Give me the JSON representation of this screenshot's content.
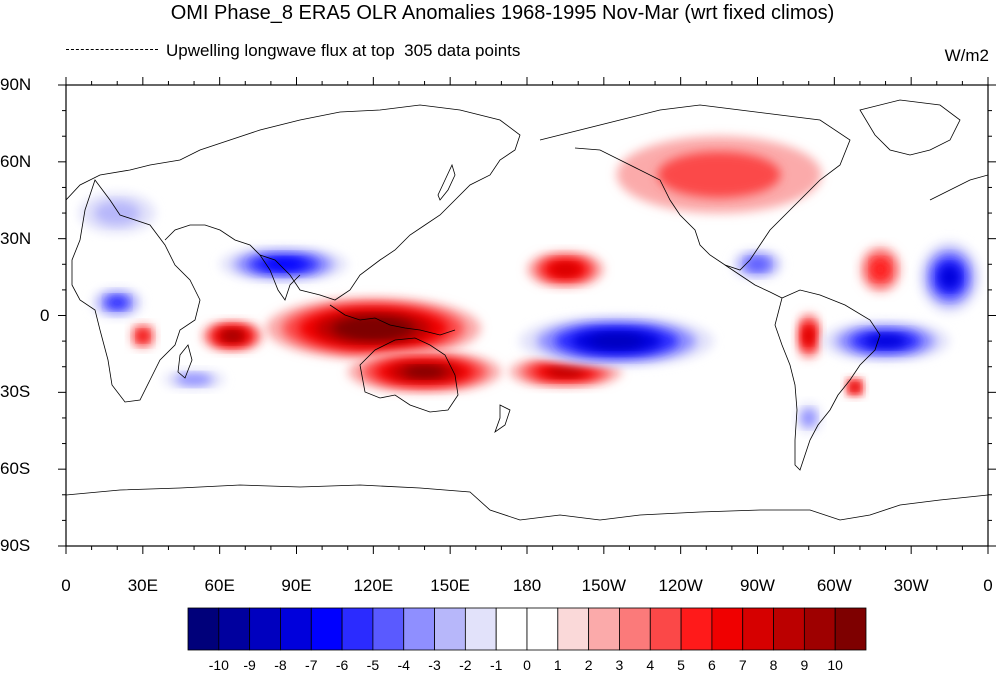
{
  "title": "OMI Phase_8 ERA5 OLR Anomalies 1968-1995 Nov-Mar (wrt fixed climos)",
  "subtitle_left": "Upwelling longwave flux at top",
  "subtitle_count": "305 data points",
  "units": "W/m2",
  "lat_labels": [
    "90N",
    "60N",
    "30N",
    "0",
    "30S",
    "60S",
    "90S"
  ],
  "lon_labels": [
    "0",
    "30E",
    "60E",
    "90E",
    "120E",
    "150E",
    "180",
    "150W",
    "120W",
    "90W",
    "60W",
    "30W",
    "0"
  ],
  "colorbar": {
    "labels": [
      "-10",
      "-9",
      "-8",
      "-7",
      "-6",
      "-5",
      "-4",
      "-3",
      "-2",
      "-1",
      "0",
      "1",
      "2",
      "3",
      "4",
      "5",
      "6",
      "7",
      "8",
      "9",
      "10"
    ],
    "colors": [
      "#00007a",
      "#00009e",
      "#0000bf",
      "#0000dc",
      "#0000ff",
      "#2b2bff",
      "#5a5aff",
      "#8f8fff",
      "#b7b7fa",
      "#e2e2fa",
      "#ffffff",
      "#ffffff",
      "#fad9d9",
      "#fbaaaa",
      "#fb7a7a",
      "#fb4848",
      "#ff1a1a",
      "#f00000",
      "#d60000",
      "#bb0000",
      "#9e0000",
      "#7e0000"
    ]
  },
  "map_data": {
    "projection": "cylindrical-equidistant",
    "lon_range": [
      0,
      360
    ],
    "lat_range": [
      -90,
      90
    ],
    "anomalies": [
      {
        "lon": 120,
        "lat": -5,
        "rx": 42,
        "ry": 12,
        "value": 11
      },
      {
        "lon": 140,
        "lat": -22,
        "rx": 30,
        "ry": 8,
        "value": 10
      },
      {
        "lon": 195,
        "lat": -22,
        "rx": 22,
        "ry": 6,
        "value": 8
      },
      {
        "lon": 65,
        "lat": -8,
        "rx": 12,
        "ry": 6,
        "value": 9
      },
      {
        "lon": 195,
        "lat": 18,
        "rx": 15,
        "ry": 7,
        "value": 7
      },
      {
        "lon": 290,
        "lat": -8,
        "rx": 5,
        "ry": 9,
        "value": 7
      },
      {
        "lon": 318,
        "lat": 18,
        "rx": 8,
        "ry": 9,
        "value": 5
      },
      {
        "lon": 255,
        "lat": 55,
        "rx": 40,
        "ry": 15,
        "value": 4
      },
      {
        "lon": 30,
        "lat": -8,
        "rx": 5,
        "ry": 5,
        "value": 6
      },
      {
        "lon": 308,
        "lat": -28,
        "rx": 4,
        "ry": 4,
        "value": 7
      },
      {
        "lon": 215,
        "lat": -10,
        "rx": 38,
        "ry": 10,
        "value": -9
      },
      {
        "lon": 320,
        "lat": -10,
        "rx": 25,
        "ry": 8,
        "value": -8
      },
      {
        "lon": 345,
        "lat": 15,
        "rx": 12,
        "ry": 14,
        "value": -8
      },
      {
        "lon": 85,
        "lat": 20,
        "rx": 25,
        "ry": 7,
        "value": -7
      },
      {
        "lon": 20,
        "lat": 5,
        "rx": 10,
        "ry": 6,
        "value": -6
      },
      {
        "lon": 270,
        "lat": 20,
        "rx": 10,
        "ry": 6,
        "value": -5
      },
      {
        "lon": 50,
        "lat": -25,
        "rx": 12,
        "ry": 4,
        "value": -4
      },
      {
        "lon": 20,
        "lat": 40,
        "rx": 15,
        "ry": 8,
        "value": -3
      },
      {
        "lon": 290,
        "lat": -40,
        "rx": 5,
        "ry": 6,
        "value": -4
      }
    ]
  }
}
